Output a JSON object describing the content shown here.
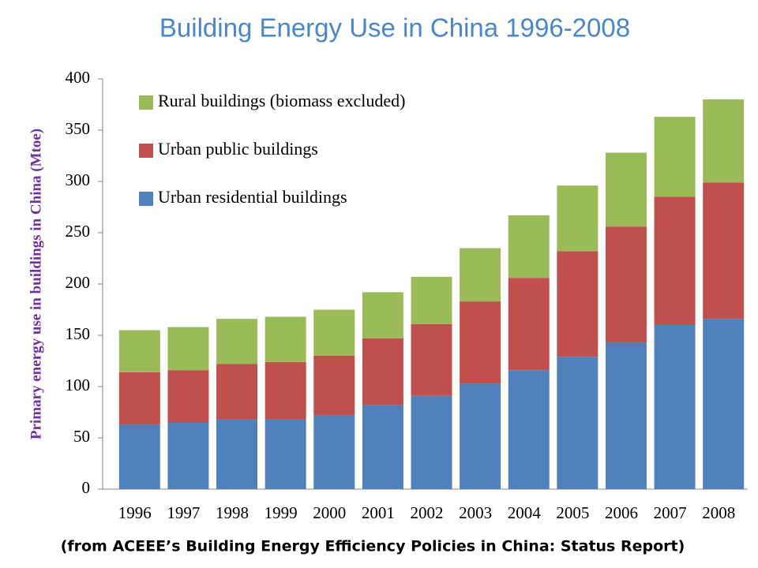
{
  "chart_data": {
    "type": "stacked-bar",
    "title": "Building Energy Use in China 1996-2008",
    "y_label": "Primary energy use in buildings in China (Mtoe)",
    "note": "(from ACEEE’s Building Energy Efficiency Policies in China: Status Report)",
    "categories": [
      "1996",
      "1997",
      "1998",
      "1999",
      "2000",
      "2001",
      "2002",
      "2003",
      "2004",
      "2005",
      "2006",
      "2007",
      "2008"
    ],
    "series": [
      {
        "name": "Urban residential buildings",
        "color": "#4f81bd",
        "values": [
          63,
          65,
          68,
          68,
          72,
          82,
          91,
          103,
          116,
          129,
          143,
          160,
          166
        ]
      },
      {
        "name": "Urban public buildings",
        "color": "#c0504d",
        "values": [
          51,
          51,
          54,
          56,
          58,
          65,
          70,
          80,
          90,
          103,
          113,
          125,
          133
        ]
      },
      {
        "name": "Rural buildings (biomass excluded)",
        "color": "#9bbb59",
        "values": [
          41,
          42,
          44,
          44,
          45,
          45,
          46,
          52,
          61,
          64,
          72,
          78,
          81
        ]
      }
    ],
    "ylim": [
      0,
      400
    ],
    "yticks": [
      0,
      50,
      100,
      150,
      200,
      250,
      300,
      350,
      400
    ],
    "grid": false,
    "legend": "top-left"
  }
}
